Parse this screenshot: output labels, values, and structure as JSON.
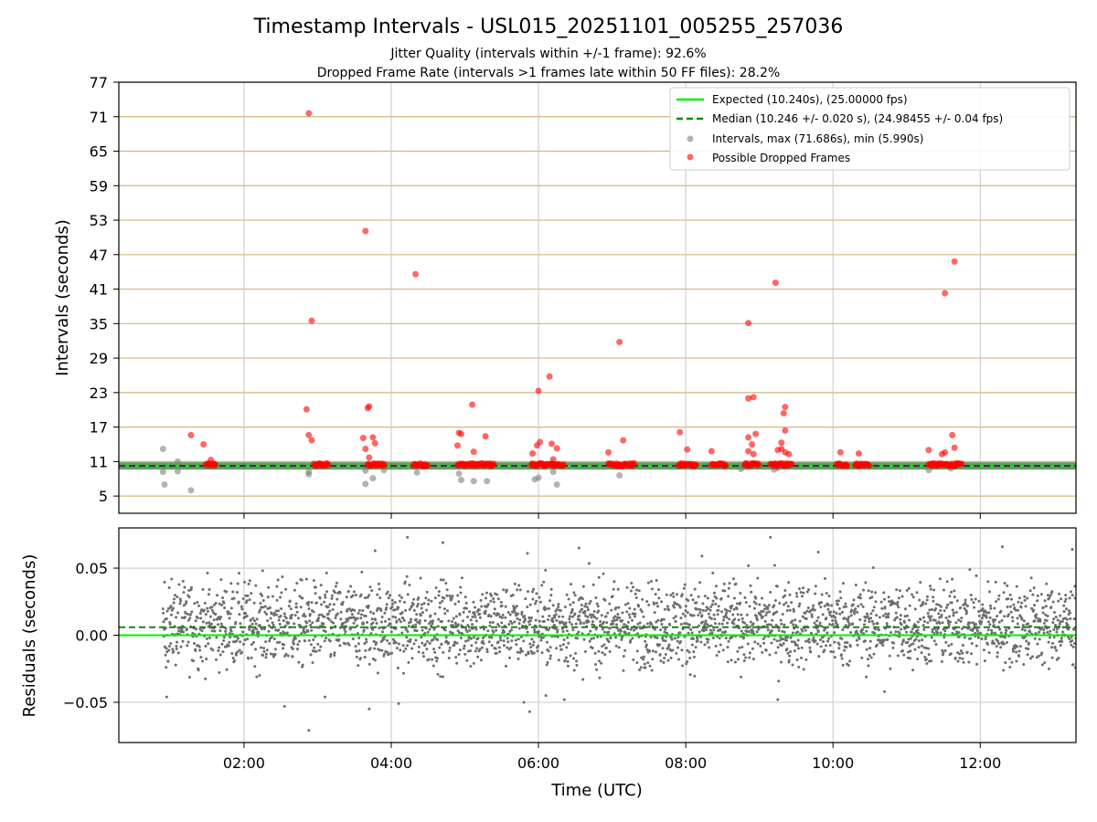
{
  "chart_data": [
    {
      "type": "scatter",
      "title": "Timestamp Intervals - USL015_20251101_005255_257036",
      "subtitle_lines": [
        "Jitter Quality (intervals within +/-1 frame): 92.6%",
        "Dropped Frame Rate (intervals >1 frames late within 50 FF files): 28.2%"
      ],
      "xlabel": "",
      "ylabel": "Intervals (seconds)",
      "xlim_hours": [
        0.3,
        13.3
      ],
      "ylim": [
        2,
        77
      ],
      "yticks": [
        5,
        11,
        17,
        23,
        29,
        35,
        41,
        47,
        53,
        59,
        65,
        71,
        77
      ],
      "xtick_hours": [
        2,
        4,
        6,
        8,
        10,
        12
      ],
      "grid": true,
      "legend_position": "top-right",
      "colors": {
        "expected": "#00ee00",
        "median": "#118811",
        "intervals": "#808080",
        "dropped": "#ff0000",
        "ygrid": "#d2b77a",
        "xgrid": "#c8c8c8"
      },
      "lines": {
        "expected": 10.24,
        "median": 10.246
      },
      "series": [
        {
          "name": "Expected (10.240s), (25.00000 fps)",
          "kind": "hline"
        },
        {
          "name": "Median (10.246 +/- 0.020 s), (24.98455 +/- 0.04 fps)",
          "kind": "hline-dashed"
        },
        {
          "name": "Intervals, max (71.686s), min (5.990s)",
          "kind": "scatter",
          "points": [
            [
              0.9,
              13.2
            ],
            [
              0.9,
              9.2
            ],
            [
              0.92,
              7.0
            ],
            [
              1.1,
              11.0
            ],
            [
              1.1,
              9.3
            ],
            [
              1.28,
              6.0
            ],
            [
              2.88,
              8.8
            ],
            [
              2.88,
              9.2
            ],
            [
              3.65,
              7.1
            ],
            [
              3.65,
              9.4
            ],
            [
              3.75,
              8.1
            ],
            [
              3.9,
              9.5
            ],
            [
              4.35,
              9.1
            ],
            [
              4.92,
              8.9
            ],
            [
              4.95,
              7.8
            ],
            [
              5.12,
              7.6
            ],
            [
              5.3,
              7.6
            ],
            [
              5.95,
              7.9
            ],
            [
              6.0,
              8.2
            ],
            [
              6.2,
              9.2
            ],
            [
              6.25,
              7.0
            ],
            [
              7.1,
              8.6
            ],
            [
              8.75,
              9.7
            ],
            [
              9.2,
              9.6
            ],
            [
              9.25,
              9.9
            ],
            [
              11.3,
              9.5
            ],
            [
              11.6,
              9.8
            ]
          ]
        },
        {
          "name": "Possible Dropped Frames",
          "kind": "scatter",
          "isolated": [
            [
              1.28,
              15.6
            ],
            [
              1.45,
              14.0
            ],
            [
              1.55,
              11.3
            ],
            [
              1.6,
              10.4
            ],
            [
              2.88,
              71.6
            ],
            [
              2.92,
              35.5
            ],
            [
              2.85,
              20.1
            ],
            [
              2.88,
              15.6
            ],
            [
              2.92,
              14.7
            ],
            [
              3.65,
              51.1
            ],
            [
              3.68,
              20.3
            ],
            [
              3.7,
              20.6
            ],
            [
              3.62,
              15.1
            ],
            [
              3.65,
              13.2
            ],
            [
              3.75,
              15.2
            ],
            [
              3.78,
              14.2
            ],
            [
              3.7,
              11.7
            ],
            [
              4.33,
              43.6
            ],
            [
              4.92,
              16.0
            ],
            [
              4.9,
              13.8
            ],
            [
              4.95,
              15.8
            ],
            [
              5.1,
              20.9
            ],
            [
              5.12,
              12.7
            ],
            [
              5.28,
              15.4
            ],
            [
              5.92,
              12.4
            ],
            [
              5.98,
              13.8
            ],
            [
              6.0,
              23.3
            ],
            [
              6.02,
              14.4
            ],
            [
              6.15,
              25.8
            ],
            [
              6.18,
              14.1
            ],
            [
              6.25,
              13.3
            ],
            [
              6.2,
              11.4
            ],
            [
              6.95,
              12.6
            ],
            [
              7.1,
              31.8
            ],
            [
              7.15,
              14.7
            ],
            [
              7.92,
              16.1
            ],
            [
              8.02,
              13.1
            ],
            [
              8.35,
              12.8
            ],
            [
              8.85,
              35.1
            ],
            [
              8.85,
              22.0
            ],
            [
              8.92,
              22.2
            ],
            [
              8.85,
              15.2
            ],
            [
              8.9,
              14.0
            ],
            [
              8.95,
              15.8
            ],
            [
              8.92,
              12.3
            ],
            [
              8.85,
              12.8
            ],
            [
              9.22,
              42.1
            ],
            [
              9.25,
              13.0
            ],
            [
              9.3,
              13.2
            ],
            [
              9.3,
              14.3
            ],
            [
              9.33,
              19.4
            ],
            [
              9.35,
              20.5
            ],
            [
              9.35,
              16.4
            ],
            [
              9.35,
              12.6
            ],
            [
              9.4,
              12.3
            ],
            [
              10.1,
              12.6
            ],
            [
              10.35,
              12.4
            ],
            [
              11.3,
              13.0
            ],
            [
              11.48,
              12.3
            ],
            [
              11.52,
              12.6
            ],
            [
              11.52,
              40.3
            ],
            [
              11.65,
              45.8
            ],
            [
              11.62,
              15.6
            ],
            [
              11.65,
              13.4
            ]
          ],
          "clusters": [
            [
              1.48,
              1.62
            ],
            [
              2.95,
              3.15
            ],
            [
              3.68,
              3.92
            ],
            [
              4.3,
              4.5
            ],
            [
              4.9,
              5.4
            ],
            [
              5.9,
              6.35
            ],
            [
              6.95,
              7.3
            ],
            [
              7.9,
              8.15
            ],
            [
              8.35,
              8.55
            ],
            [
              8.8,
              9.0
            ],
            [
              9.15,
              9.45
            ],
            [
              10.05,
              10.2
            ],
            [
              10.3,
              10.5
            ],
            [
              11.3,
              11.75
            ]
          ]
        }
      ]
    },
    {
      "type": "scatter",
      "xlabel": "Time (UTC)",
      "ylabel": "Residuals (seconds)",
      "ylim": [
        -0.08,
        0.08
      ],
      "yticks": [
        0.05,
        0.0,
        -0.05
      ],
      "ytick_labels": [
        "0.05",
        "0.00",
        "−0.05"
      ],
      "xtick_labels": [
        "02:00",
        "04:00",
        "06:00",
        "08:00",
        "10:00",
        "12:00"
      ],
      "xlim_hours": [
        0.3,
        13.3
      ],
      "grid": true,
      "lines": {
        "expected": 0.0,
        "median": 0.006
      },
      "series": [
        {
          "kind": "scatter",
          "x_range_hours": [
            0.9,
            13.3
          ],
          "y_center": 0.008,
          "y_spread": 0.025,
          "outliers": [
            [
              2.88,
              -0.071
            ],
            [
              2.55,
              -0.053
            ],
            [
              3.1,
              -0.046
            ],
            [
              3.7,
              -0.055
            ],
            [
              3.78,
              0.063
            ],
            [
              4.1,
              -0.051
            ],
            [
              4.22,
              0.073
            ],
            [
              4.7,
              0.069
            ],
            [
              5.8,
              -0.05
            ],
            [
              5.88,
              -0.057
            ],
            [
              5.85,
              0.061
            ],
            [
              6.1,
              -0.045
            ],
            [
              6.55,
              0.065
            ],
            [
              6.35,
              -0.048
            ],
            [
              9.15,
              0.073
            ],
            [
              9.25,
              -0.048
            ],
            [
              9.8,
              0.062
            ],
            [
              12.3,
              0.066
            ],
            [
              13.25,
              0.064
            ],
            [
              8.22,
              0.059
            ],
            [
              10.7,
              -0.042
            ],
            [
              0.95,
              -0.046
            ]
          ]
        }
      ]
    }
  ]
}
